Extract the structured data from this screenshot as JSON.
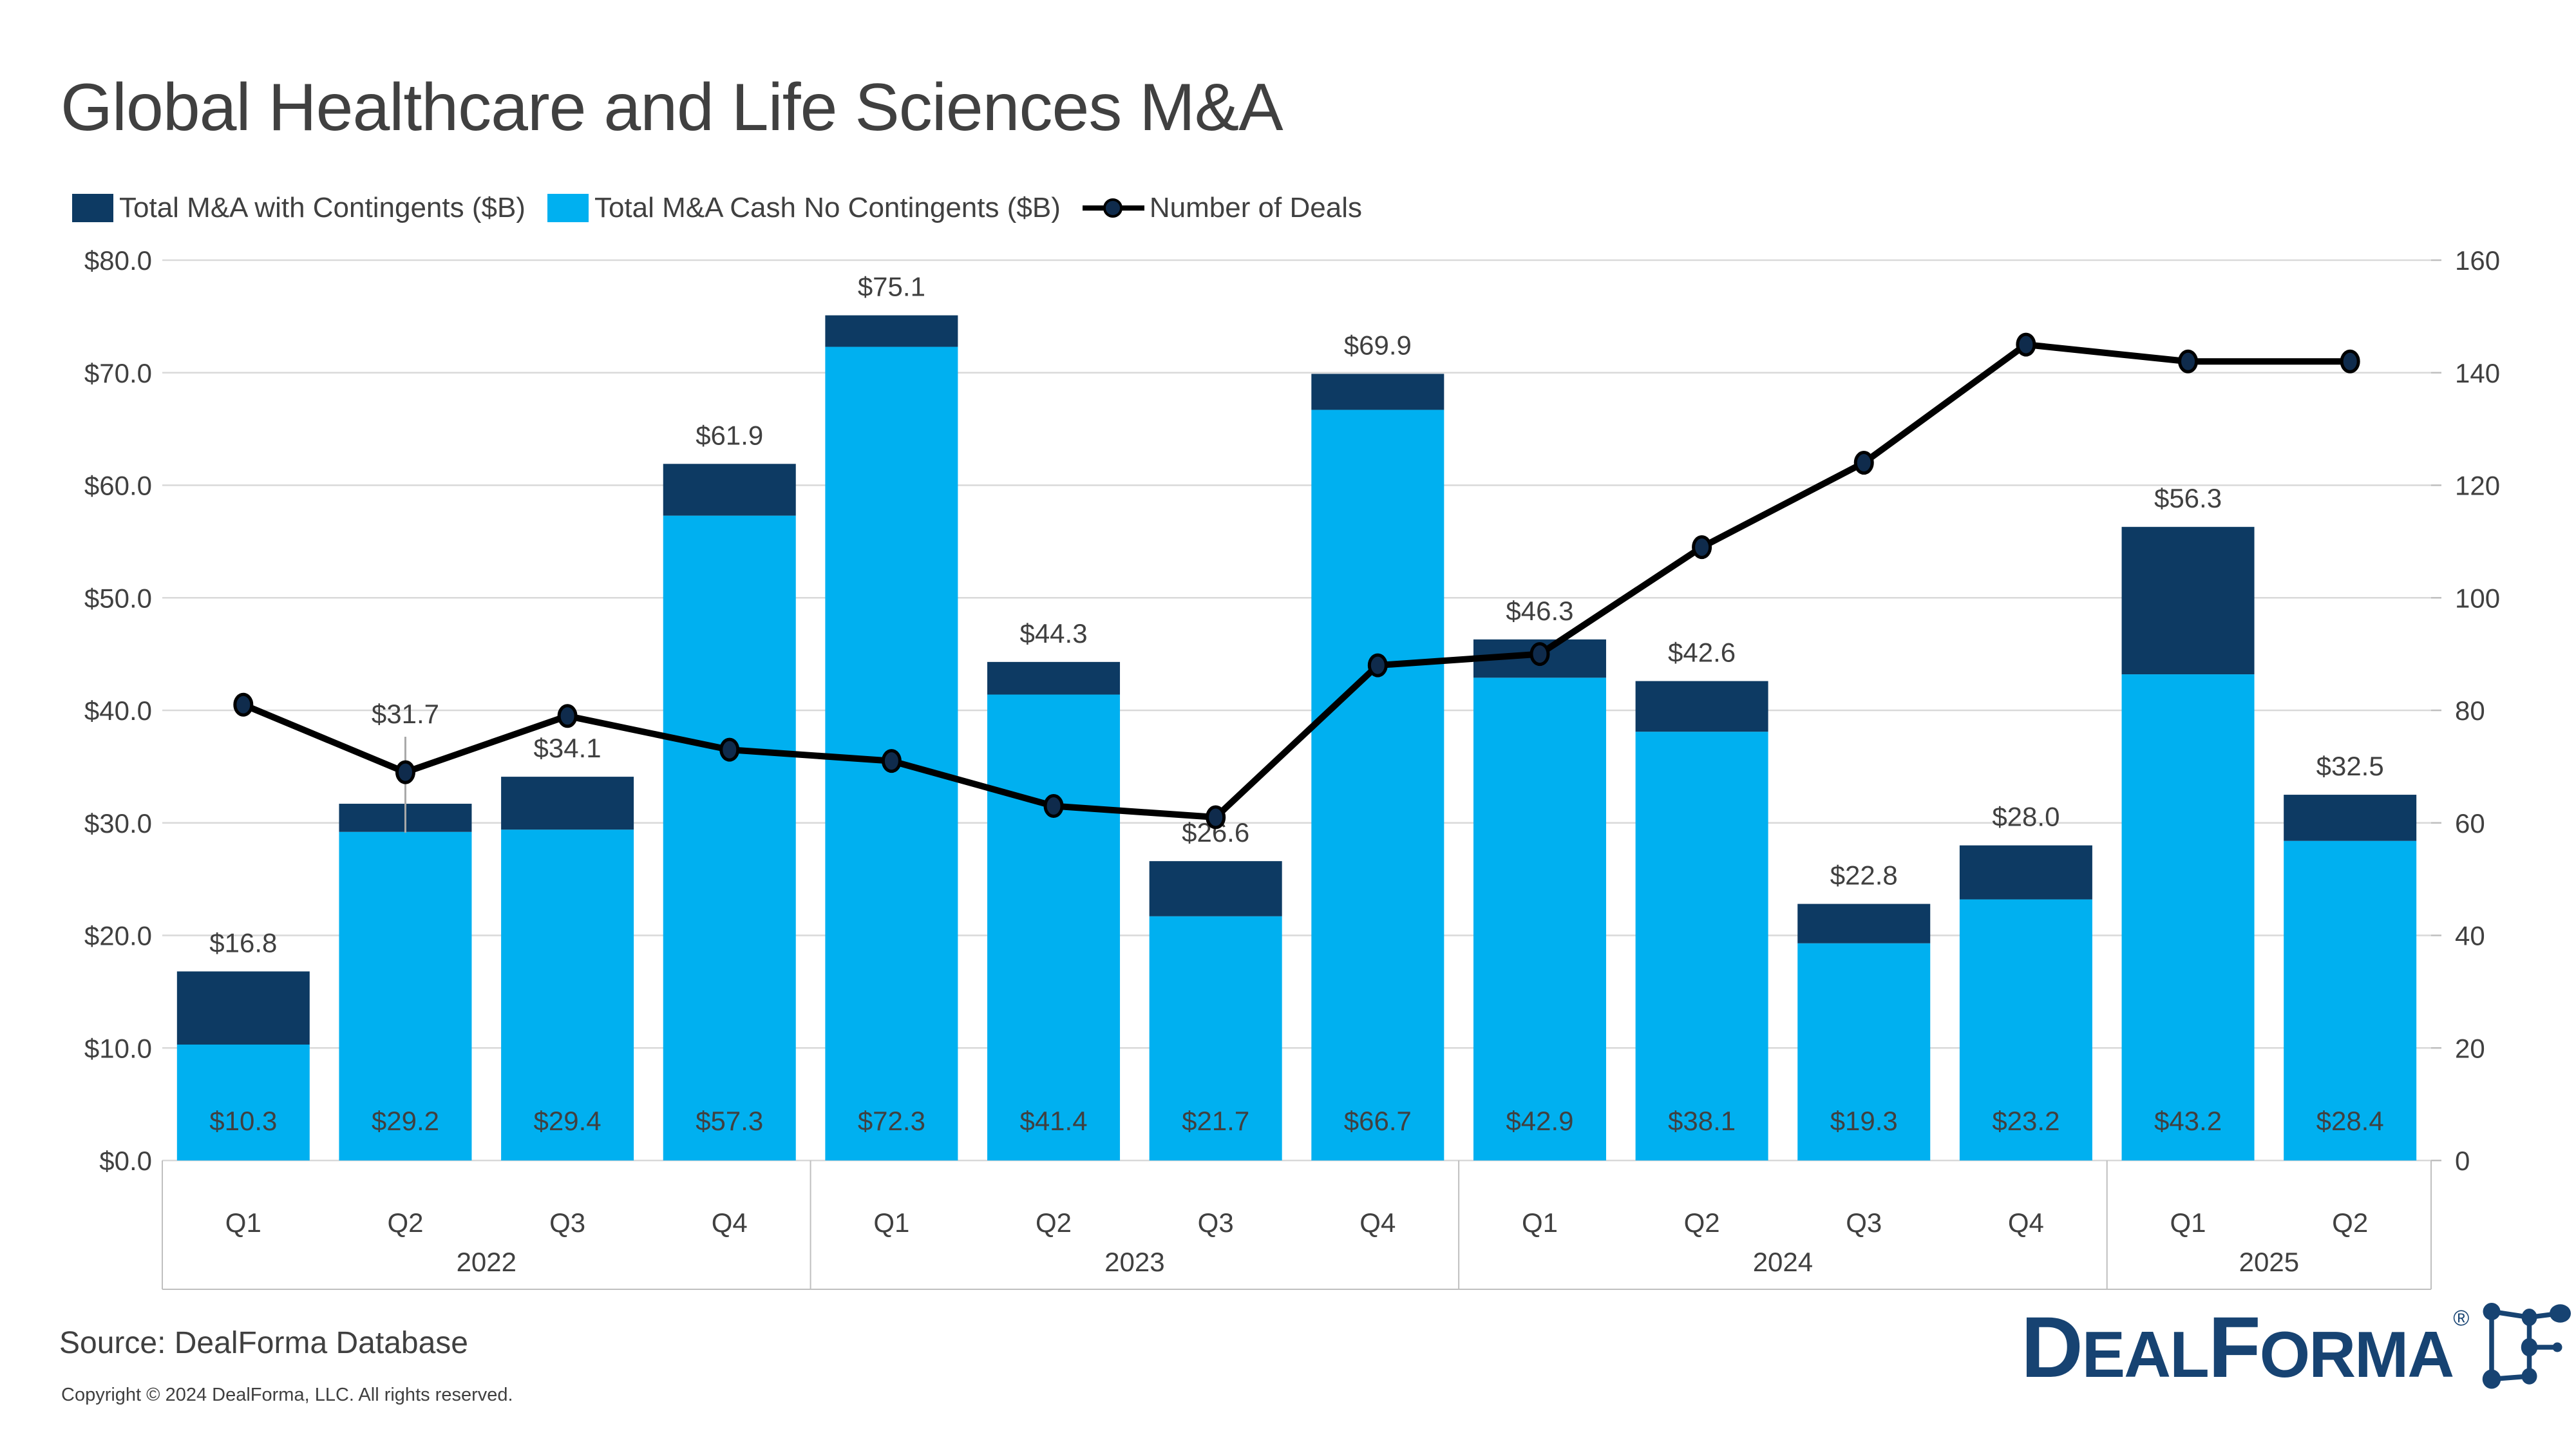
{
  "title": "Global Healthcare and Life Sciences M&A",
  "legend": [
    {
      "label": "Total M&A with Contingents ($B)",
      "swatch": "navy-square"
    },
    {
      "label": "Total M&A Cash No Contingents ($B)",
      "swatch": "cyan-square"
    },
    {
      "label": "Number of Deals",
      "swatch": "black-line-marker"
    }
  ],
  "colors": {
    "contingent": "#0D3A63",
    "cash": "#00B0F0",
    "line": "#000000",
    "marker": "#0F2B4C",
    "grid": "#D9D9D9",
    "band_line": "#BFBFBF",
    "axis_text": "#404040",
    "label_text": "#404040",
    "leader": "#A9A9A9",
    "logo_navy": "#174372"
  },
  "source": "Source: DealForma Database",
  "copyright": "Copyright © 2024 DealForma, LLC. All rights reserved.",
  "logo": {
    "d": "D",
    "eal": "EAL",
    "f": "F",
    "orma": "ORMA",
    "registered": "®"
  },
  "chart_data": {
    "type": "stacked-bar-with-line",
    "title": "Global Healthcare and Life Sciences M&A",
    "grid": true,
    "legend_position": "top-left",
    "quarters": [
      "Q1",
      "Q2",
      "Q3",
      "Q4",
      "Q1",
      "Q2",
      "Q3",
      "Q4",
      "Q1",
      "Q2",
      "Q3",
      "Q4",
      "Q1",
      "Q2"
    ],
    "year_groups": [
      {
        "label": "2022",
        "count": 4
      },
      {
        "label": "2023",
        "count": 4
      },
      {
        "label": "2024",
        "count": 4
      },
      {
        "label": "2025",
        "count": 2
      }
    ],
    "left_axis": {
      "min": 0,
      "max": 80,
      "step": 10,
      "ticks": [
        "$80.0",
        "$70.0",
        "$60.0",
        "$50.0",
        "$40.0",
        "$30.0",
        "$20.0",
        "$10.0",
        "$0.0"
      ]
    },
    "right_axis": {
      "min": 0,
      "max": 160,
      "step": 20,
      "ticks": [
        "160",
        "140",
        "120",
        "100",
        "80",
        "60",
        "40",
        "20",
        "0"
      ]
    },
    "series": [
      {
        "name": "Total M&A with Contingents ($B)",
        "type": "bar",
        "stack_role": "total-topper",
        "color": "#0D3A63",
        "totals": [
          16.8,
          31.7,
          34.1,
          61.9,
          75.1,
          44.3,
          26.6,
          69.9,
          46.3,
          42.6,
          22.8,
          28.0,
          56.3,
          32.5
        ],
        "labels": [
          "$16.8",
          "$31.7",
          "$34.1",
          "$61.9",
          "$75.1",
          "$44.3",
          "$26.6",
          "$69.9",
          "$46.3",
          "$42.6",
          "$22.8",
          "$28.0",
          "$56.3",
          "$32.5"
        ]
      },
      {
        "name": "Total M&A Cash No Contingents ($B)",
        "type": "bar",
        "stack_role": "base",
        "color": "#00B0F0",
        "values": [
          10.3,
          29.2,
          29.4,
          57.3,
          72.3,
          41.4,
          21.7,
          66.7,
          42.9,
          38.1,
          19.3,
          23.2,
          43.2,
          28.4
        ],
        "labels": [
          "$10.3",
          "$29.2",
          "$29.4",
          "$57.3",
          "$72.3",
          "$41.4",
          "$21.7",
          "$66.7",
          "$42.9",
          "$38.1",
          "$19.3",
          "$23.2",
          "$43.2",
          "$28.4"
        ]
      },
      {
        "name": "Number of Deals",
        "type": "line",
        "color": "#000000",
        "values": [
          81,
          69,
          79,
          73,
          71,
          63,
          61,
          88,
          90,
          109,
          124,
          145,
          142,
          142
        ]
      }
    ],
    "callout": {
      "bar_index": 1,
      "note": "total label lifted with leader line"
    }
  }
}
